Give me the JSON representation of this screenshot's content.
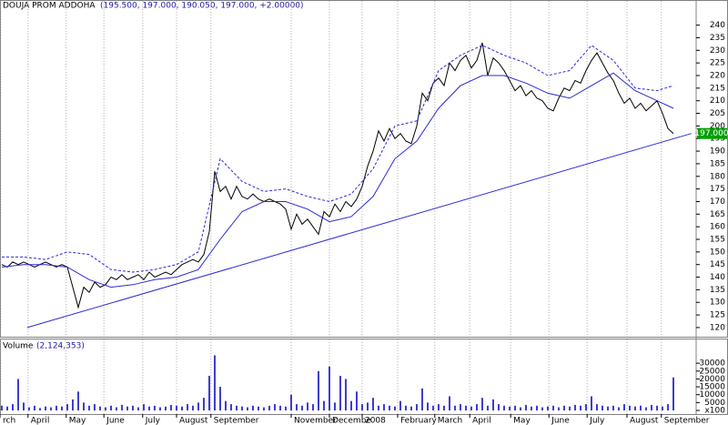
{
  "chart_data": [
    {
      "type": "line",
      "title": "DOUJA PROM ADDOHA",
      "subtitle": "(195.500, 197.000, 190.050, 197.000, +2.00000)",
      "xlim": [
        -0.33,
        127.17
      ],
      "ylim": [
        116,
        246
      ],
      "yticks": [
        120,
        125,
        130,
        135,
        140,
        145,
        150,
        155,
        160,
        165,
        170,
        175,
        180,
        185,
        190,
        195,
        200,
        205,
        210,
        215,
        220,
        225,
        230,
        235,
        240
      ],
      "last_value": {
        "value": 197,
        "label": "197.000"
      },
      "series": [
        {
          "color": "#000000",
          "style": "solid",
          "values": [
            145,
            144,
            146,
            145,
            146,
            145,
            144,
            145,
            146,
            145,
            144,
            145,
            144,
            136,
            128,
            136,
            134,
            138,
            136,
            137,
            140,
            139,
            141,
            139,
            140,
            141,
            139,
            142,
            140,
            141,
            142,
            141,
            143,
            145,
            146,
            147,
            146,
            149,
            158,
            182,
            174,
            176,
            171,
            176,
            172,
            171,
            173,
            171,
            170,
            171,
            170,
            169,
            167,
            159,
            165,
            161,
            163,
            160,
            157,
            166,
            164,
            169,
            166,
            170,
            168,
            171,
            176,
            184,
            190,
            198,
            194,
            199,
            195,
            197,
            194,
            193,
            200,
            213,
            210,
            217,
            219,
            216,
            225,
            222,
            226,
            228,
            223,
            226,
            233,
            220,
            227,
            225,
            222,
            218,
            214,
            216,
            212,
            214,
            211,
            210,
            207,
            206,
            211,
            215,
            214,
            218,
            217,
            222,
            226,
            229,
            225,
            221,
            218,
            213,
            209,
            211,
            207,
            209,
            206,
            208,
            210,
            205,
            199,
            197
          ]
        },
        {
          "color": "#2a2ad8",
          "style": "solid",
          "x": [
            0,
            4,
            8,
            12,
            16,
            20,
            24,
            28,
            32,
            36,
            40,
            44,
            48,
            52,
            56,
            60,
            64,
            68,
            72,
            76,
            80,
            84,
            88,
            92,
            96,
            100,
            104,
            108,
            112,
            116,
            120,
            123
          ],
          "values": [
            144,
            145,
            145,
            144,
            139,
            136,
            137,
            139,
            140,
            143,
            155,
            166,
            170,
            170,
            167,
            162,
            164,
            172,
            187,
            194,
            207,
            216,
            220,
            220,
            217,
            213,
            211,
            216,
            221,
            214,
            210,
            207
          ]
        },
        {
          "color": "#2a2ad8",
          "style": "dashed",
          "x": [
            0,
            4,
            8,
            12,
            16,
            20,
            24,
            28,
            32,
            36,
            40,
            44,
            48,
            52,
            56,
            60,
            64,
            68,
            72,
            76,
            80,
            84,
            88,
            92,
            96,
            100,
            104,
            108,
            112,
            116,
            120,
            123
          ],
          "values": [
            148,
            148,
            147,
            150,
            149,
            143,
            142,
            143,
            145,
            150,
            187,
            178,
            174,
            175,
            172,
            170,
            173,
            183,
            200,
            202,
            222,
            228,
            232,
            228,
            225,
            220,
            222,
            232,
            226,
            215,
            214,
            216
          ]
        },
        {
          "color": "#2a2ad8",
          "style": "solid",
          "x": [
            4.67,
            126.3
          ],
          "values": [
            120,
            197
          ]
        }
      ]
    },
    {
      "type": "bar",
      "title": "Volume",
      "subtitle": "(2,124,353)",
      "color": "#3c3cd0",
      "xlim": [
        -0.33,
        127.17
      ],
      "ylim": [
        0,
        37000
      ],
      "yticks": [
        {
          "value": 0,
          "label": "x100"
        },
        5000,
        10000,
        15000,
        20000,
        25000,
        30000
      ],
      "xticks": [
        {
          "value": -0.33,
          "label": "rch"
        },
        {
          "value": 4.8,
          "label": "April"
        },
        {
          "value": 11.8,
          "label": "May"
        },
        {
          "value": 18.7,
          "label": "June"
        },
        {
          "value": 25.8,
          "label": "July"
        },
        {
          "value": 32,
          "label": "August"
        },
        {
          "value": 38.3,
          "label": "September"
        },
        {
          "value": 53,
          "label": "November"
        },
        {
          "value": 60,
          "label": "Decembe"
        },
        {
          "value": 66,
          "label": "2008"
        },
        {
          "value": 72.5,
          "label": "February"
        },
        {
          "value": 79.3,
          "label": "March"
        },
        {
          "value": 85.7,
          "label": "April"
        },
        {
          "value": 93.2,
          "label": "May"
        },
        {
          "value": 100.2,
          "label": "June"
        },
        {
          "value": 107.2,
          "label": "July"
        },
        {
          "value": 114.5,
          "label": "August"
        },
        {
          "value": 120.8,
          "label": "September"
        }
      ],
      "values": [
        3000,
        2500,
        4000,
        20000,
        5000,
        2000,
        3000,
        1500,
        2500,
        2000,
        3000,
        2500,
        4000,
        7000,
        12000,
        5000,
        3000,
        4000,
        2500,
        2000,
        3000,
        2000,
        3500,
        2500,
        3000,
        2000,
        4000,
        2500,
        3000,
        2000,
        2500,
        3500,
        3000,
        2500,
        4000,
        3000,
        5000,
        8000,
        22000,
        35000,
        15000,
        6000,
        4000,
        3000,
        2500,
        2000,
        3000,
        2500,
        2000,
        3000,
        4000,
        3000,
        2500,
        10000,
        4000,
        3000,
        5000,
        4000,
        25000,
        6000,
        28000,
        5000,
        22000,
        20000,
        6000,
        12000,
        4000,
        5000,
        8000,
        3000,
        4000,
        3000,
        2500,
        6000,
        3000,
        2500,
        4000,
        14000,
        5000,
        3000,
        4000,
        3000,
        9000,
        3000,
        4000,
        3000,
        2500,
        4000,
        8000,
        3000,
        7000,
        4000,
        3000,
        2500,
        3000,
        2000,
        3500,
        2500,
        3000,
        2000,
        2500,
        3000,
        2000,
        3000,
        2500,
        3500,
        3000,
        4000,
        9000,
        4000,
        3000,
        2500,
        3000,
        2000,
        4000,
        3000,
        2500,
        3000,
        2000,
        3500,
        3000,
        2500,
        4000,
        21000
      ]
    }
  ]
}
